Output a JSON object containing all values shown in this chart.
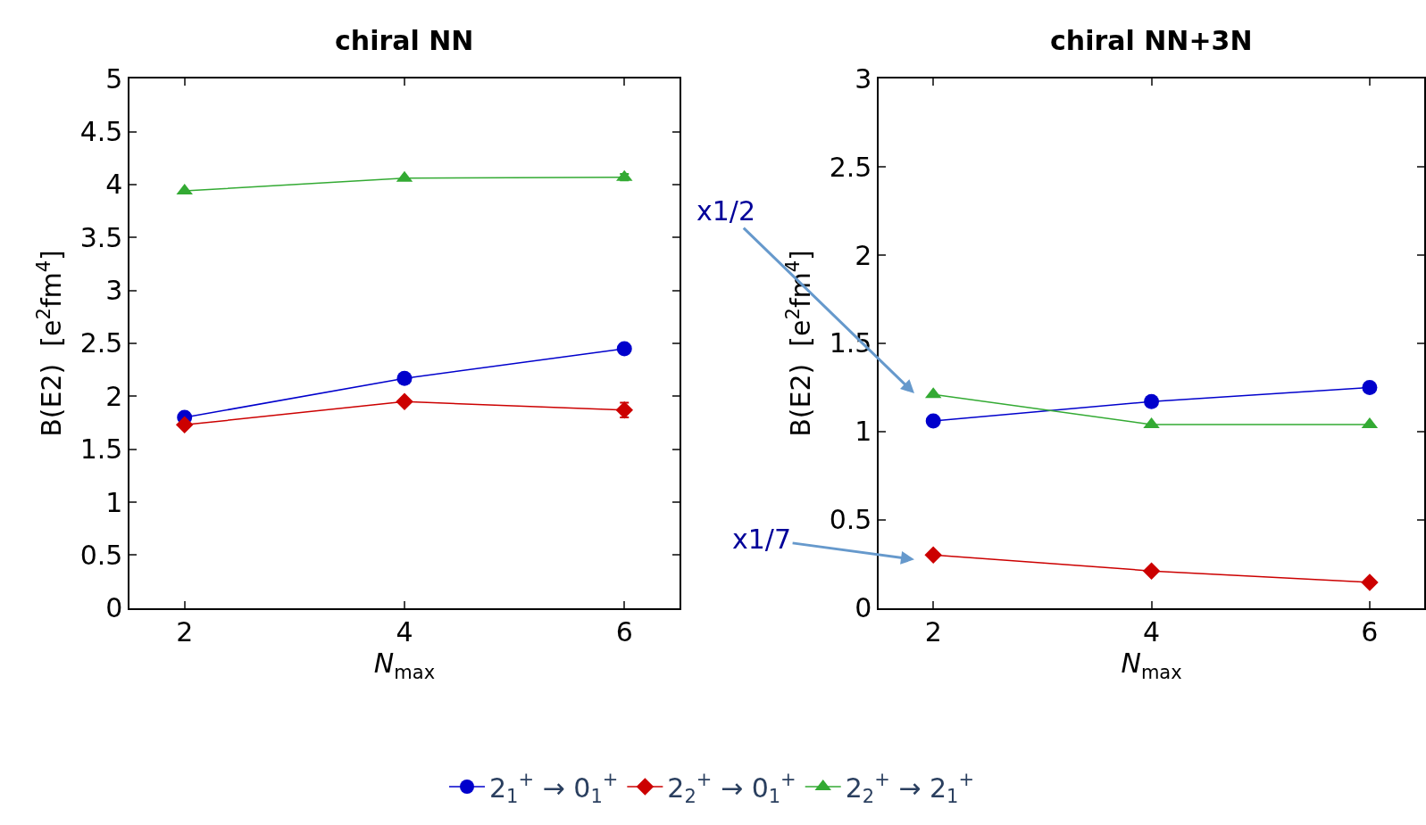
{
  "chart_data": [
    {
      "type": "line",
      "title": "chiral NN",
      "xlabel": "N$_{max}$",
      "ylabel": "B(E2)  [e$^{2}$fm$^{4}$]",
      "x": [
        2,
        4,
        6
      ],
      "xlim": [
        1.5,
        6.5
      ],
      "xticks": [
        2,
        4,
        6
      ],
      "ylim": [
        0,
        5
      ],
      "yticks": [
        0,
        {
          "value": 0.5,
          "label": "0.5"
        },
        1,
        {
          "value": 1.5,
          "label": "1.5"
        },
        2,
        {
          "value": 2.5,
          "label": "2.5"
        },
        3,
        {
          "value": 3.5,
          "label": "3.5"
        },
        4,
        {
          "value": 4.5,
          "label": "4.5"
        },
        5
      ],
      "legend": "bottom",
      "series": [
        {
          "name": "2$_{1}$$^{+}$ → 0$_{1}$$^{+}$",
          "color": "#0000cc",
          "marker": "circle",
          "values": [
            1.8,
            2.17,
            2.45
          ]
        },
        {
          "name": "2$_{2}$$^{+}$ → 0$_{1}$$^{+}$",
          "color": "#cc0000",
          "marker": "diamond",
          "values": [
            1.73,
            1.95,
            1.87
          ],
          "errors": [
            null,
            null,
            0.07
          ]
        },
        {
          "name": "2$_{2}$$^{+}$ → 2$_{1}$$^{+}$",
          "color": "#33aa33",
          "marker": "triangle",
          "values": [
            3.94,
            4.06,
            4.07
          ],
          "errors": [
            null,
            null,
            0.03
          ]
        }
      ],
      "annotations": [
        "x1/2",
        "x1/7"
      ]
    },
    {
      "type": "line",
      "title": "chiral NN+3N",
      "xlabel": "N$_{max}$",
      "ylabel": "B(E2)  [e$^{2}$fm$^{4}$]",
      "x": [
        2,
        4,
        6
      ],
      "xlim": [
        1.5,
        6.5
      ],
      "xticks": [
        2,
        4,
        6
      ],
      "ylim": [
        0,
        3
      ],
      "yticks": [
        0,
        {
          "value": 0.5,
          "label": "0.5"
        },
        1,
        {
          "value": 1.5,
          "label": "1.5"
        },
        2,
        {
          "value": 2.5,
          "label": "2.5"
        },
        3
      ],
      "series": [
        {
          "color": "#0000cc",
          "marker": "circle",
          "values": [
            1.06,
            1.17,
            1.25
          ]
        },
        {
          "color": "#cc0000",
          "marker": "diamond",
          "values": [
            0.3,
            0.21,
            0.145
          ]
        },
        {
          "color": "#33aa33",
          "marker": "triangle",
          "values": [
            1.21,
            1.04,
            1.04
          ]
        }
      ]
    }
  ]
}
